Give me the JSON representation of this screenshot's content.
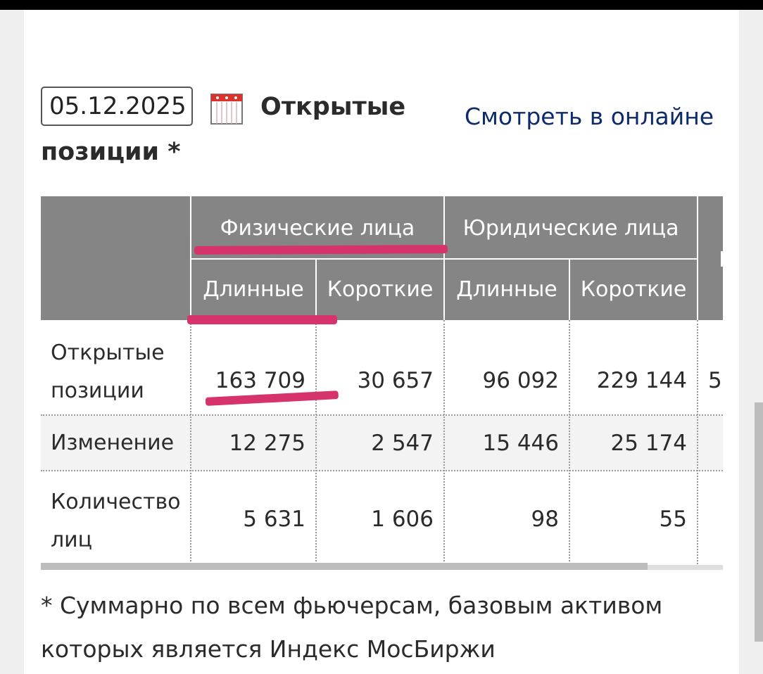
{
  "date_input": {
    "value": "05.12.2025"
  },
  "icons": {
    "calendar": "calendar-icon"
  },
  "title": {
    "line1": "Открытые",
    "line2": "позиции *"
  },
  "online_link": "Смотреть в онлайне",
  "table": {
    "groups": [
      "Физические лица",
      "Юридические лица"
    ],
    "subheaders": [
      "Длинные",
      "Короткие",
      "Длинные",
      "Короткие"
    ],
    "rows": [
      {
        "label": [
          "Открытые",
          "позиции"
        ],
        "values": [
          "163 709",
          "30 657",
          "96 092",
          "229 144",
          "5"
        ]
      },
      {
        "label": [
          "Изменение"
        ],
        "values": [
          "12 275",
          "2 547",
          "15 446",
          "25 174",
          ""
        ]
      },
      {
        "label": [
          "Количество",
          "лиц"
        ],
        "values": [
          "5 631",
          "1 606",
          "98",
          "55",
          ""
        ]
      }
    ]
  },
  "footnote": "* Суммарно по всем фьючерсам, базовым активом которых является Индекс МосБиржи",
  "colors": {
    "header_bg": "#858585",
    "link": "#0d2a6b",
    "highlight": "#d6336c",
    "alt_row": "#f3f3f3"
  }
}
